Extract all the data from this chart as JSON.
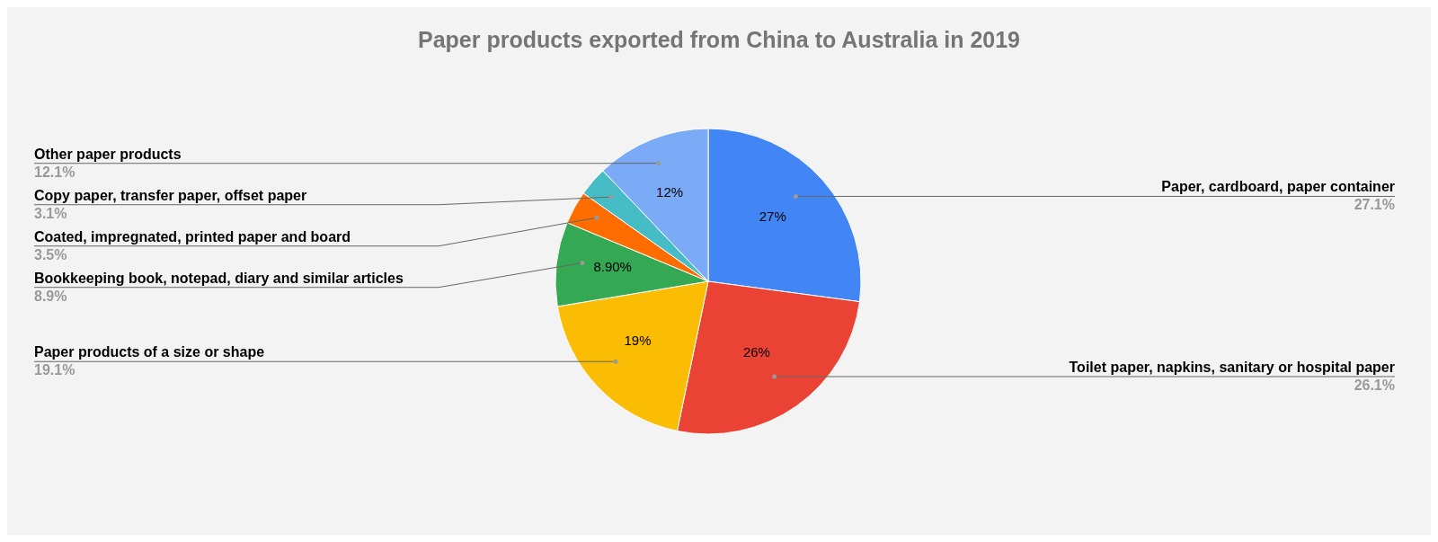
{
  "chart_data": {
    "type": "pie",
    "title": "Paper products exported from China to Australia in 2019",
    "categories": [
      "Paper, cardboard, paper container",
      "Toilet paper, napkins, sanitary or hospital paper",
      "Paper products of a size or shape",
      "Bookkeeping book, notepad, diary and similar articles",
      "Coated, impregnated, printed paper and board",
      "Copy paper, transfer paper, offset paper",
      "Other paper products"
    ],
    "values": [
      27.1,
      26.1,
      19.1,
      8.9,
      3.5,
      3.1,
      12.1
    ],
    "colors": [
      "#4285f4",
      "#ea4335",
      "#fbbc04",
      "#34a853",
      "#ff6d01",
      "#46bdc6",
      "#7baaf7"
    ],
    "value_labels": [
      "27.1%",
      "26.1%",
      "19.1%",
      "8.9%",
      "3.5%",
      "3.1%",
      "12.1%"
    ],
    "annotations": [
      {
        "text": "27%",
        "x": "Paper, cardboard, paper container"
      },
      {
        "text": "26%",
        "x": "Toilet paper, napkins, sanitary or hospital paper"
      },
      {
        "text": "19%",
        "x": "Paper products of a size or shape"
      },
      {
        "text": "8.90%",
        "x": "Bookkeeping book, notepad, diary and similar articles"
      },
      {
        "text": "12%",
        "x": "Other paper products"
      }
    ],
    "legend": false
  }
}
